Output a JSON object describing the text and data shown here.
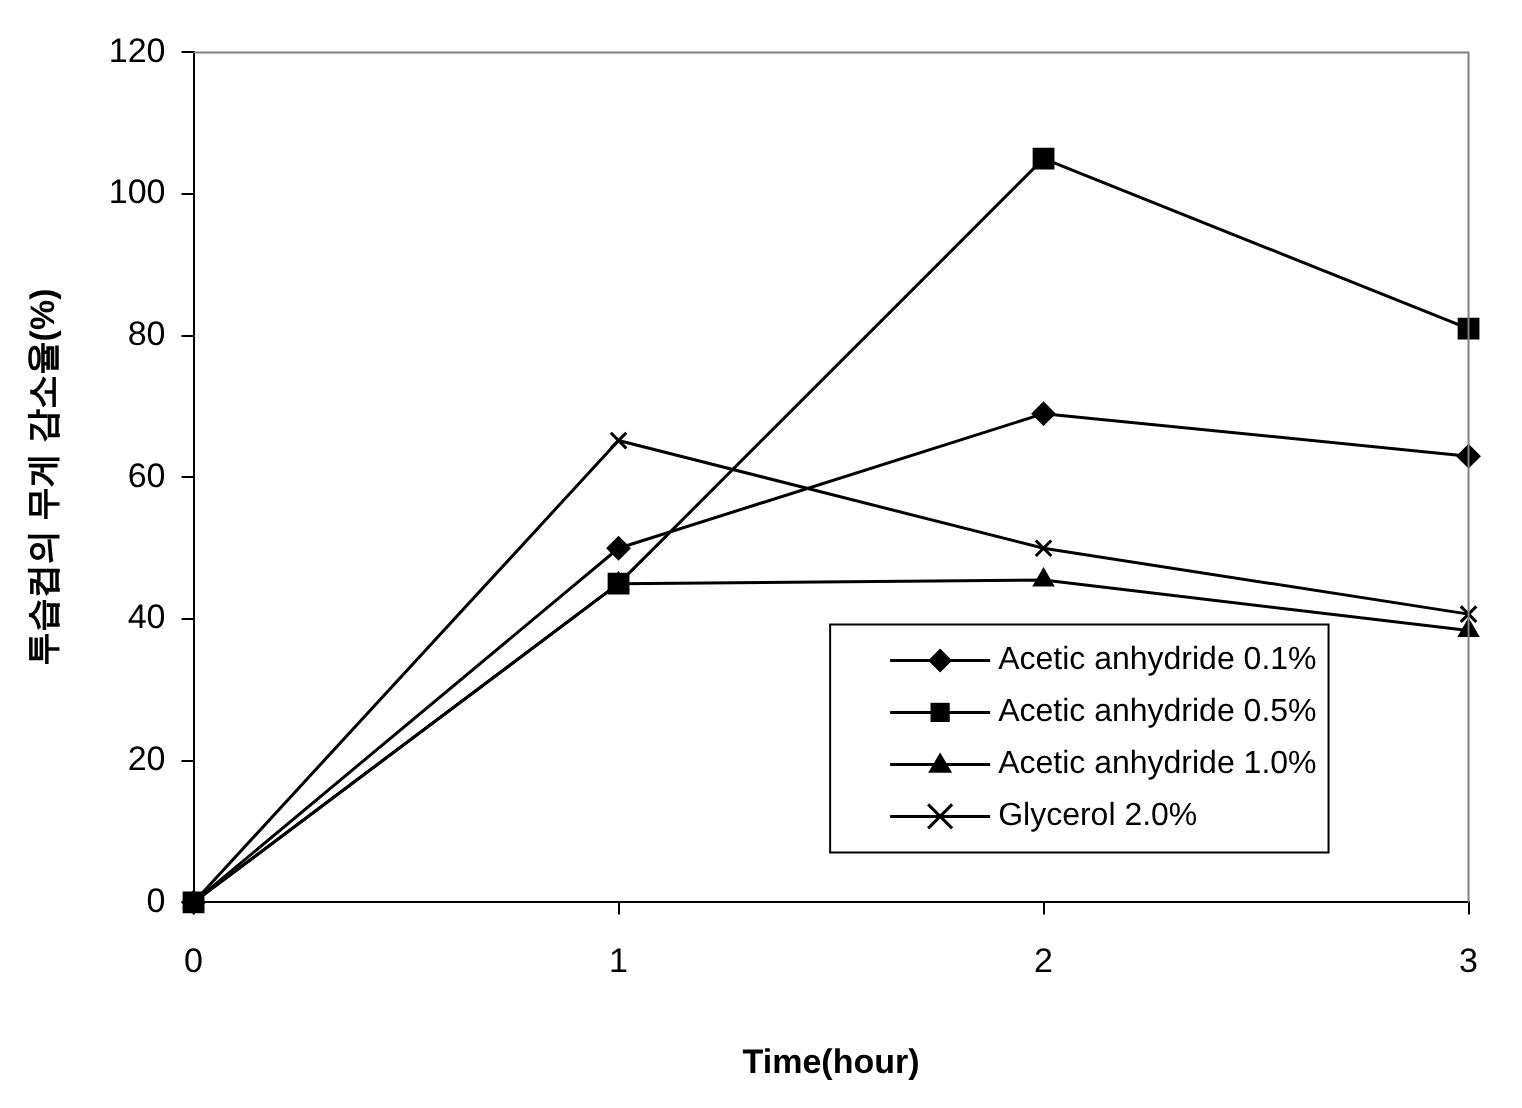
{
  "chart_data": {
    "type": "line",
    "xlabel": "Time(hour)",
    "ylabel": "투습컵의 무게 감소율(%)",
    "x": [
      0,
      1,
      2,
      3
    ],
    "xlim": [
      0,
      3
    ],
    "xticks": [
      0,
      1,
      2,
      3
    ],
    "ylim": [
      0,
      120
    ],
    "yticks": [
      0,
      20,
      40,
      60,
      80,
      100,
      120
    ],
    "grid": false,
    "legend": "bottom right",
    "line_style": "solid",
    "series": [
      {
        "name": "Acetic anhydride 0.1%",
        "color": "#000000",
        "marker": "diamond",
        "values": [
          0,
          50,
          69,
          63
        ]
      },
      {
        "name": "Acetic anhydride 0.5%",
        "color": "#000000",
        "marker": "square",
        "values": [
          0,
          45,
          105,
          81
        ]
      },
      {
        "name": "Acetic anhydride 1.0%",
        "color": "#000000",
        "marker": "triangle",
        "values": [
          0,
          45,
          45.5,
          38.4
        ]
      },
      {
        "name": "Glycerol 2.0%",
        "color": "#000000",
        "marker": "cross",
        "values": [
          0,
          65.2,
          50,
          40.7
        ]
      }
    ]
  }
}
